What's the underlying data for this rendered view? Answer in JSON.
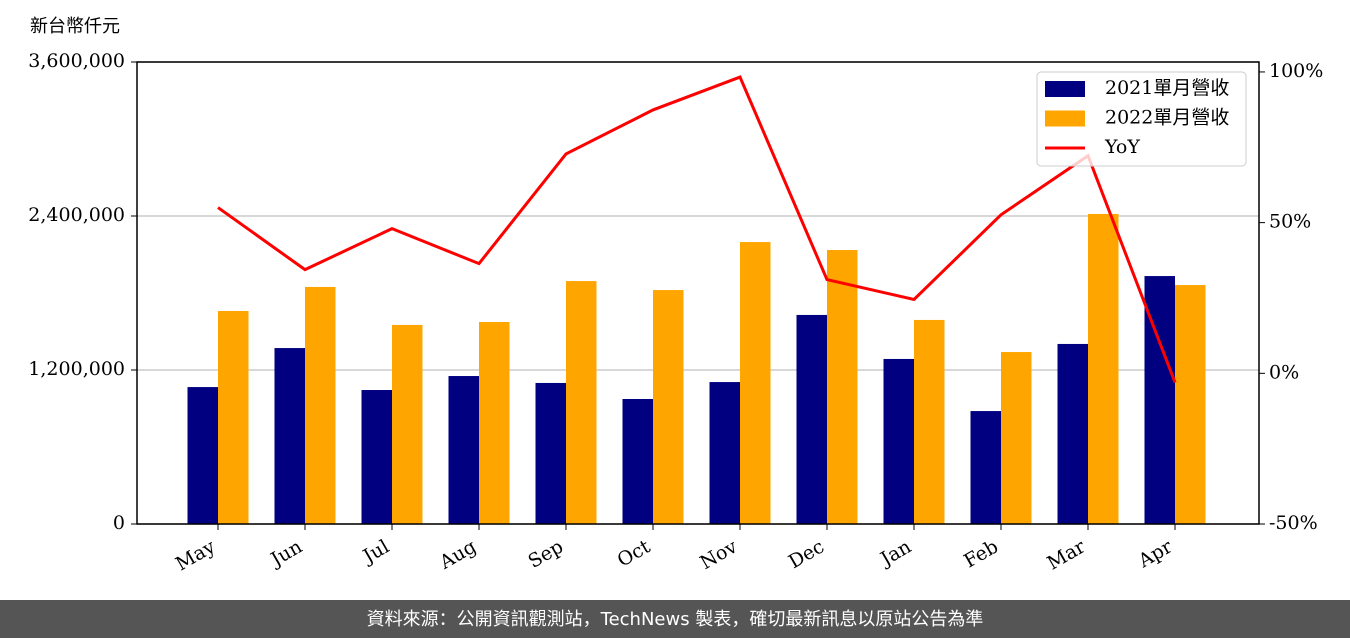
{
  "chart_data": {
    "type": "bar_line",
    "y_label": "新台幣仟元",
    "categories": [
      "May",
      "Jun",
      "Jul",
      "Aug",
      "Sep",
      "Oct",
      "Nov",
      "Dec",
      "Jan",
      "Feb",
      "Mar",
      "Apr"
    ],
    "series": [
      {
        "name": "2021單月營收",
        "color": "#000080",
        "type": "bar",
        "values": [
          1067000,
          1371000,
          1044000,
          1153000,
          1099000,
          974000,
          1106000,
          1629000,
          1286000,
          880000,
          1403000,
          1932000
        ]
      },
      {
        "name": "2022單月營收",
        "color": "#ffa500",
        "type": "bar",
        "values": [
          1660000,
          1847000,
          1551000,
          1574000,
          1893000,
          1823000,
          2197000,
          2135000,
          1590000,
          1340000,
          2416000,
          1862000
        ]
      },
      {
        "name": "YoY",
        "color": "#ff0000",
        "type": "line",
        "axis": "y2",
        "values": [
          55,
          34.4,
          48,
          36.4,
          72.8,
          87.4,
          98.3,
          31.1,
          24.5,
          52.6,
          72.2,
          -3
        ]
      }
    ],
    "ylim": [
      0,
      3600000
    ],
    "yticks": [
      0,
      {
        "value": 1200000,
        "label": "1,200,000"
      },
      {
        "value": 2400000,
        "label": "2,400,000"
      },
      {
        "value": 3600000,
        "label": "3,600,000"
      }
    ],
    "y2lim": [
      -50,
      103.3
    ],
    "y2ticks": [
      {
        "value": -50,
        "label": "-50%"
      },
      {
        "value": 0,
        "label": "0%"
      },
      {
        "value": 50,
        "label": "50%"
      },
      {
        "value": 100,
        "label": "100%"
      }
    ],
    "grid": true,
    "legend": "upper right",
    "footer": "資料來源：公開資訊觀測站，TechNews 製表，確切最新訊息以原站公告為準"
  }
}
